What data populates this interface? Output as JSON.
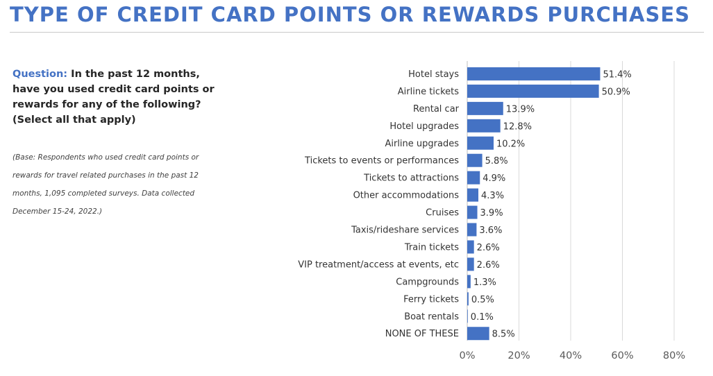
{
  "page": {
    "title": "TYPE OF CREDIT CARD POINTS OR REWARDS PURCHASES",
    "question_label": "Question:",
    "question_text": "In the past 12 months, have you used credit card points or rewards for any of the following?  (Select all that apply)",
    "base_note": "(Base: Respondents who used credit card points or rewards for travel related purchases in the past 12 months, 1,095 completed surveys. Data collected December 15-24, 2022.)"
  },
  "chart_data": {
    "type": "bar",
    "orientation": "horizontal",
    "categories": [
      "Hotel stays",
      "Airline tickets",
      "Rental car",
      "Hotel upgrades",
      "Airline upgrades",
      "Tickets to events or performances",
      "Tickets to attractions",
      "Other accommodations",
      "Cruises",
      "Taxis/rideshare services",
      "Train tickets",
      "VIP treatment/access at events, etc",
      "Campgrounds",
      "Ferry tickets",
      "Boat rentals",
      "NONE OF THESE"
    ],
    "values": [
      51.4,
      50.9,
      13.9,
      12.8,
      10.2,
      5.8,
      4.9,
      4.3,
      3.9,
      3.6,
      2.6,
      2.6,
      1.3,
      0.5,
      0.1,
      8.5
    ],
    "value_labels": [
      "51.4%",
      "50.9%",
      "13.9%",
      "12.8%",
      "10.2%",
      "5.8%",
      "4.9%",
      "4.3%",
      "3.9%",
      "3.6%",
      "2.6%",
      "2.6%",
      "1.3%",
      "0.5%",
      "0.1%",
      "8.5%"
    ],
    "xlim": [
      0,
      80
    ],
    "x_ticks": [
      0,
      20,
      40,
      60,
      80
    ],
    "x_tick_labels": [
      "0%",
      "20%",
      "40%",
      "60%",
      "80%"
    ],
    "grid": "vertical",
    "legend": "none",
    "bar_color": "#4472c4"
  }
}
